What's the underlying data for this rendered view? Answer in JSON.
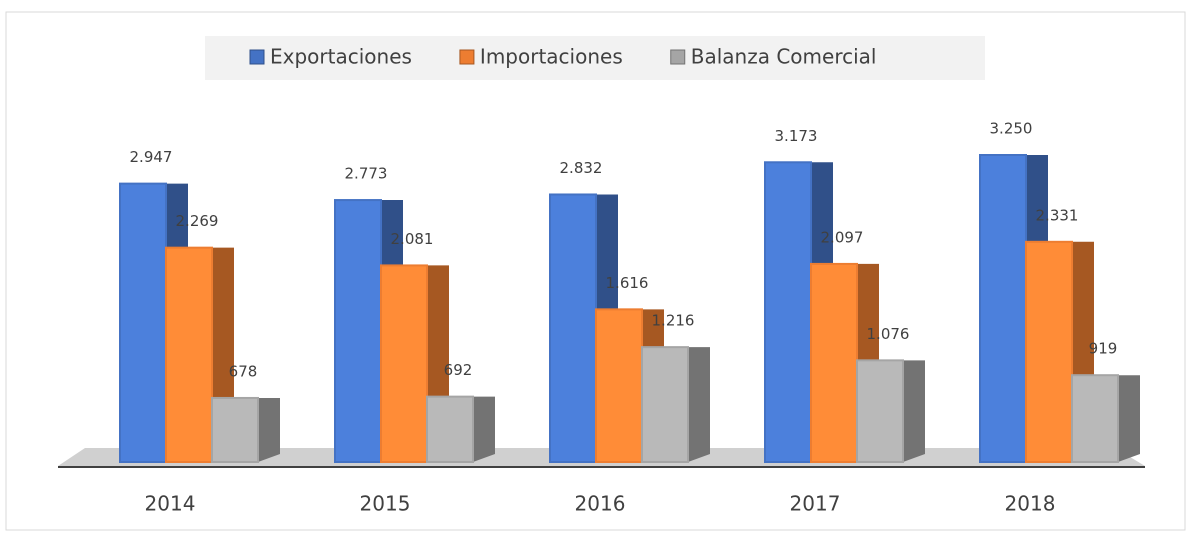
{
  "chart_data": {
    "type": "bar3d",
    "categories": [
      "2014",
      "2015",
      "2016",
      "2017",
      "2018"
    ],
    "series": [
      {
        "name": "Exportaciones",
        "color": "#4472c4",
        "values": [
          2947,
          2773,
          2832,
          3173,
          3250
        ],
        "value_labels": [
          "2.947",
          "2.773",
          "2.832",
          "3.173",
          "3.250"
        ]
      },
      {
        "name": "Importaciones",
        "color": "#ed7d31",
        "values": [
          2269,
          2081,
          1616,
          2097,
          2331
        ],
        "value_labels": [
          "2.269",
          "2.081",
          "1.616",
          "2.097",
          "2.331"
        ]
      },
      {
        "name": "Balanza Comercial",
        "color": "#a5a5a5",
        "values": [
          678,
          692,
          1216,
          1076,
          919
        ],
        "value_labels": [
          "678",
          "692",
          "1.216",
          "1.076",
          "919"
        ]
      }
    ],
    "legend": "top"
  }
}
